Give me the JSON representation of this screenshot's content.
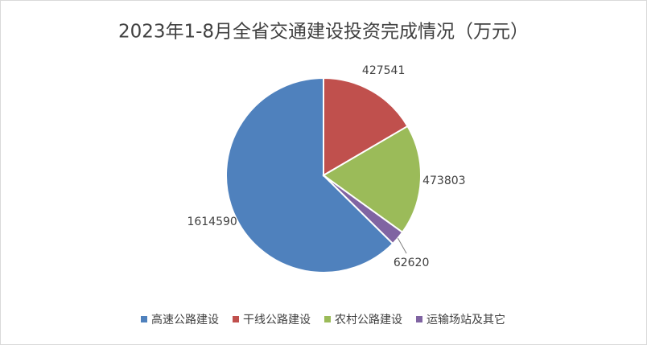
{
  "chart_data": {
    "type": "pie",
    "title": "2023年1-8月全省交通建设投资完成情况（万元）",
    "categories": [
      "高速公路建设",
      "干线公路建设",
      "农村公路建设",
      "运输场站及其它"
    ],
    "values": [
      1614590,
      427541,
      473803,
      62620
    ],
    "colors": [
      "#4f81bd",
      "#c0504d",
      "#9bbb59",
      "#8064a2"
    ],
    "legend": "bottom"
  }
}
